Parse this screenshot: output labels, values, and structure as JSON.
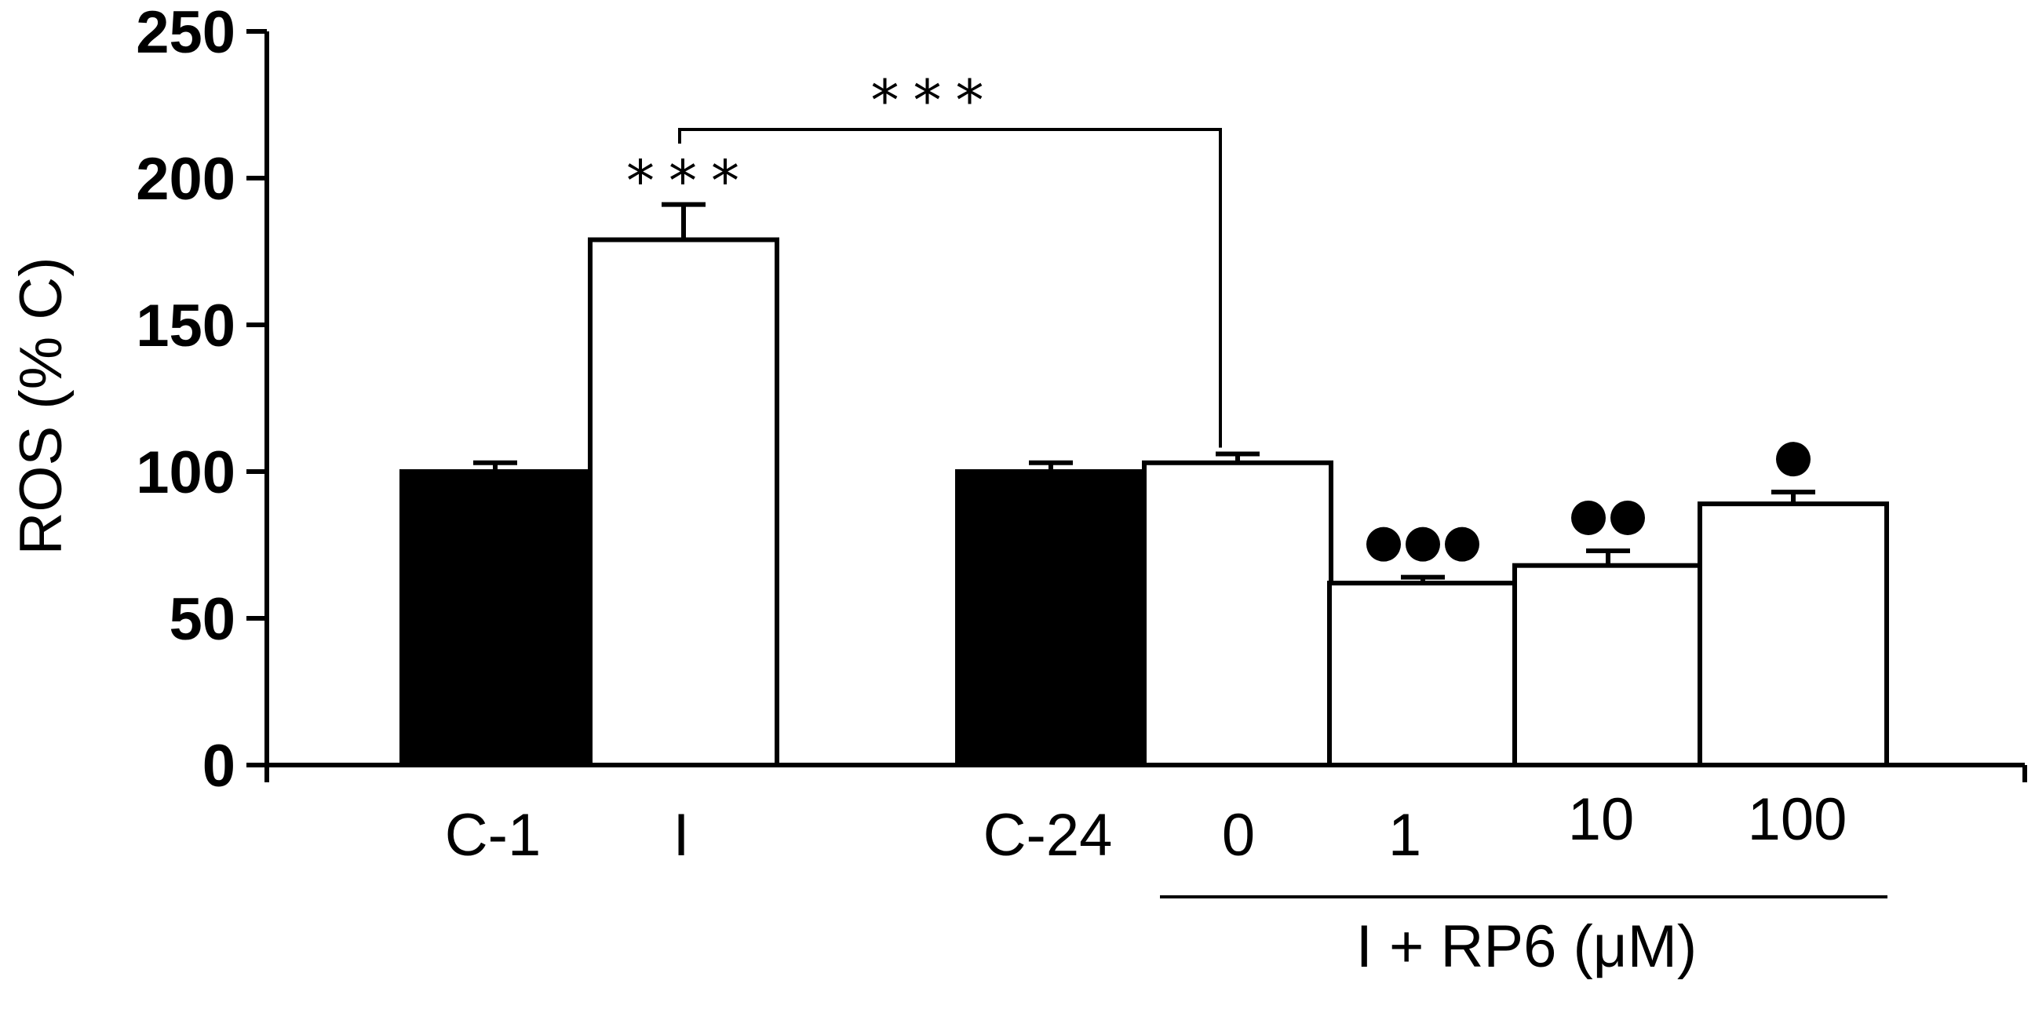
{
  "chart_data": {
    "type": "bar",
    "ylabel": "ROS (% C)",
    "xlabel": "",
    "ylim": [
      0,
      250
    ],
    "yticks": [
      0,
      50,
      100,
      150,
      200,
      250
    ],
    "categories": [
      "C-1",
      "I",
      "C-24",
      "0",
      "1",
      "10",
      "100"
    ],
    "values": [
      100,
      179,
      100,
      103,
      62,
      68,
      89
    ],
    "errors": [
      3,
      12,
      3,
      3,
      2,
      5,
      4
    ],
    "fills": [
      "#000000",
      "#ffffff",
      "#000000",
      "#ffffff",
      "#ffffff",
      "#ffffff",
      "#ffffff"
    ],
    "group_label": "I + RP6 (μM)",
    "annotations": {
      "bar_stars": {
        "bar": "I",
        "text": "***"
      },
      "bracket": {
        "from": "I",
        "to": "0",
        "text": "***"
      },
      "dots": [
        {
          "bar": "1",
          "count": 3
        },
        {
          "bar": "10",
          "count": 2
        },
        {
          "bar": "100",
          "count": 1
        }
      ]
    },
    "grid": false,
    "legend": "none"
  }
}
